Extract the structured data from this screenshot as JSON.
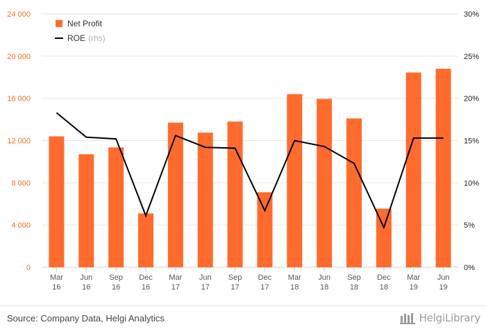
{
  "chart_data": {
    "type": "bar",
    "categories": [
      "Mar\n16",
      "Jun\n16",
      "Sep\n16",
      "Dec\n16",
      "Mar\n17",
      "Jun\n17",
      "Sep\n17",
      "Dec\n17",
      "Mar\n18",
      "Jun\n18",
      "Sep\n18",
      "Dec\n18",
      "Mar\n19",
      "Jun\n19"
    ],
    "series": [
      {
        "name": "Net Profit",
        "type": "bar",
        "axis": "left",
        "color": "#ff6b2c",
        "values": [
          12400,
          10700,
          11350,
          5100,
          13700,
          12750,
          13800,
          7100,
          16400,
          15950,
          14100,
          5550,
          18450,
          18800
        ]
      },
      {
        "name": "ROE",
        "name_suffix": "(rhs)",
        "type": "line",
        "axis": "right",
        "color": "#000000",
        "values": [
          18.3,
          15.4,
          15.2,
          6.1,
          15.6,
          14.2,
          14.1,
          6.7,
          15.0,
          14.3,
          12.3,
          4.7,
          15.3,
          15.3
        ]
      }
    ],
    "left_axis": {
      "ticks": [
        "0",
        "4 000",
        "8 000",
        "12 000",
        "16 000",
        "20 000",
        "24 000"
      ],
      "ylim": [
        0,
        24000
      ],
      "tick_values": [
        0,
        4000,
        8000,
        12000,
        16000,
        20000,
        24000
      ]
    },
    "right_axis": {
      "ticks": [
        "0%",
        "5%",
        "10%",
        "15%",
        "20%",
        "25%",
        "30%"
      ],
      "ylim": [
        0,
        30
      ],
      "tick_values": [
        0,
        5,
        10,
        15,
        20,
        25,
        30
      ]
    },
    "grid": true,
    "legend_position": "top-left"
  },
  "footer": {
    "source": "Source: Company Data, Helgi Analytics",
    "logo": "HelgiLibrary"
  }
}
